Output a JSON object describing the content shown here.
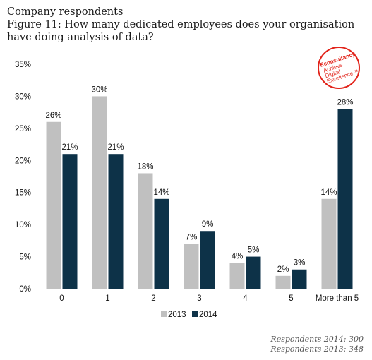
{
  "header": {
    "line1": "Company respondents",
    "line2": "Figure 11: How many dedicated employees does your organisation have doing analysis of data?"
  },
  "logo": {
    "brand": "Econsultancy",
    "tagline1": "Achieve",
    "tagline2": "Digital",
    "tagline3": "Excellence™",
    "color": "#e2231a"
  },
  "footer": {
    "note1": "Respondents 2014: 300",
    "note2": "Respondents 2013: 348"
  },
  "chart_data": {
    "type": "bar",
    "categories": [
      "0",
      "1",
      "2",
      "3",
      "4",
      "5",
      "More than 5"
    ],
    "series": [
      {
        "name": "2013",
        "values": [
          26,
          30,
          18,
          7,
          4,
          2,
          14
        ],
        "color": "#c0c0c0"
      },
      {
        "name": "2014",
        "values": [
          21,
          21,
          14,
          9,
          5,
          3,
          28
        ],
        "color": "#0d3248"
      }
    ],
    "ylim": [
      0,
      35
    ],
    "yticks": [
      0,
      5,
      10,
      15,
      20,
      25,
      30,
      35
    ],
    "yformat": "percent",
    "grid": false,
    "legend": "bottom-center"
  }
}
